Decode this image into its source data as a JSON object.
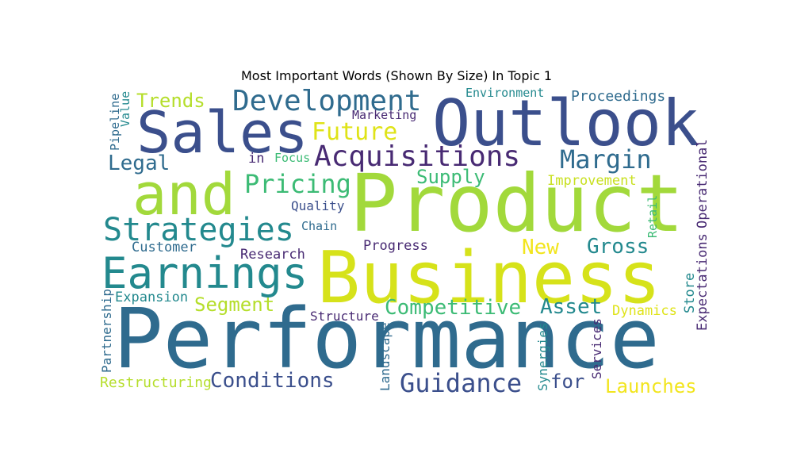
{
  "chart_data": {
    "type": "wordcloud",
    "title": "Most Important Words (Shown By Size) In Topic 1",
    "words": [
      {
        "text": "Performance",
        "color": "#2f6b8e"
      },
      {
        "text": "Product",
        "color": "#a2d93b"
      },
      {
        "text": "Business",
        "color": "#d6e21a"
      },
      {
        "text": "Outlook",
        "color": "#3b4f8c"
      },
      {
        "text": "Sales",
        "color": "#3b4f8c"
      },
      {
        "text": "and",
        "color": "#a2d93b"
      },
      {
        "text": "Earnings",
        "color": "#23898e"
      },
      {
        "text": "Strategies",
        "color": "#23898e"
      },
      {
        "text": "Development",
        "color": "#2f6b8e"
      },
      {
        "text": "Acquisitions",
        "color": "#482a73"
      },
      {
        "text": "Guidance",
        "color": "#3b4f8c"
      },
      {
        "text": "Margin",
        "color": "#2f6b8e"
      },
      {
        "text": "Pricing",
        "color": "#3cbb75"
      },
      {
        "text": "Future",
        "color": "#dfe318"
      },
      {
        "text": "Competitive",
        "color": "#3cbb75"
      },
      {
        "text": "Conditions",
        "color": "#3b4f8c"
      },
      {
        "text": "Legal",
        "color": "#2f6b8e"
      },
      {
        "text": "Gross",
        "color": "#23898e"
      },
      {
        "text": "New",
        "color": "#f2e51d"
      },
      {
        "text": "Asset",
        "color": "#23898e"
      },
      {
        "text": "Launches",
        "color": "#f2e51d"
      },
      {
        "text": "Segment",
        "color": "#b5de2b"
      },
      {
        "text": "Trends",
        "color": "#b5de2b"
      },
      {
        "text": "for",
        "color": "#3b4f8c"
      },
      {
        "text": "Supply",
        "color": "#3cbb75"
      },
      {
        "text": "Restructuring",
        "color": "#b5de2b"
      },
      {
        "text": "Expansion",
        "color": "#23898e"
      },
      {
        "text": "Proceedings",
        "color": "#2f6b8e"
      },
      {
        "text": "Improvement",
        "color": "#c8e020"
      },
      {
        "text": "Dynamics",
        "color": "#dfe318"
      },
      {
        "text": "Customer",
        "color": "#2f6b8e"
      },
      {
        "text": "Research",
        "color": "#482a73"
      },
      {
        "text": "Progress",
        "color": "#482a73"
      },
      {
        "text": "Quality",
        "color": "#3b4f8c"
      },
      {
        "text": "Structure",
        "color": "#482a73"
      },
      {
        "text": "Environment",
        "color": "#23898e"
      },
      {
        "text": "Marketing",
        "color": "#482a73"
      },
      {
        "text": "Chain",
        "color": "#2f6b8e"
      },
      {
        "text": "Focus",
        "color": "#3cbb75"
      },
      {
        "text": "in",
        "color": "#482a73"
      },
      {
        "text": "Pipeline",
        "color": "#2f6b8e"
      },
      {
        "text": "Value",
        "color": "#23898e"
      },
      {
        "text": "Partnership",
        "color": "#2f6b8e"
      },
      {
        "text": "Landscape",
        "color": "#2f6b8e"
      },
      {
        "text": "Synergies",
        "color": "#23898e"
      },
      {
        "text": "Services",
        "color": "#482a73"
      },
      {
        "text": "Store",
        "color": "#23898e"
      },
      {
        "text": "Retail",
        "color": "#3cbb75"
      },
      {
        "text": "Operational",
        "color": "#482a73"
      },
      {
        "text": "Expectations",
        "color": "#482a73"
      }
    ]
  }
}
